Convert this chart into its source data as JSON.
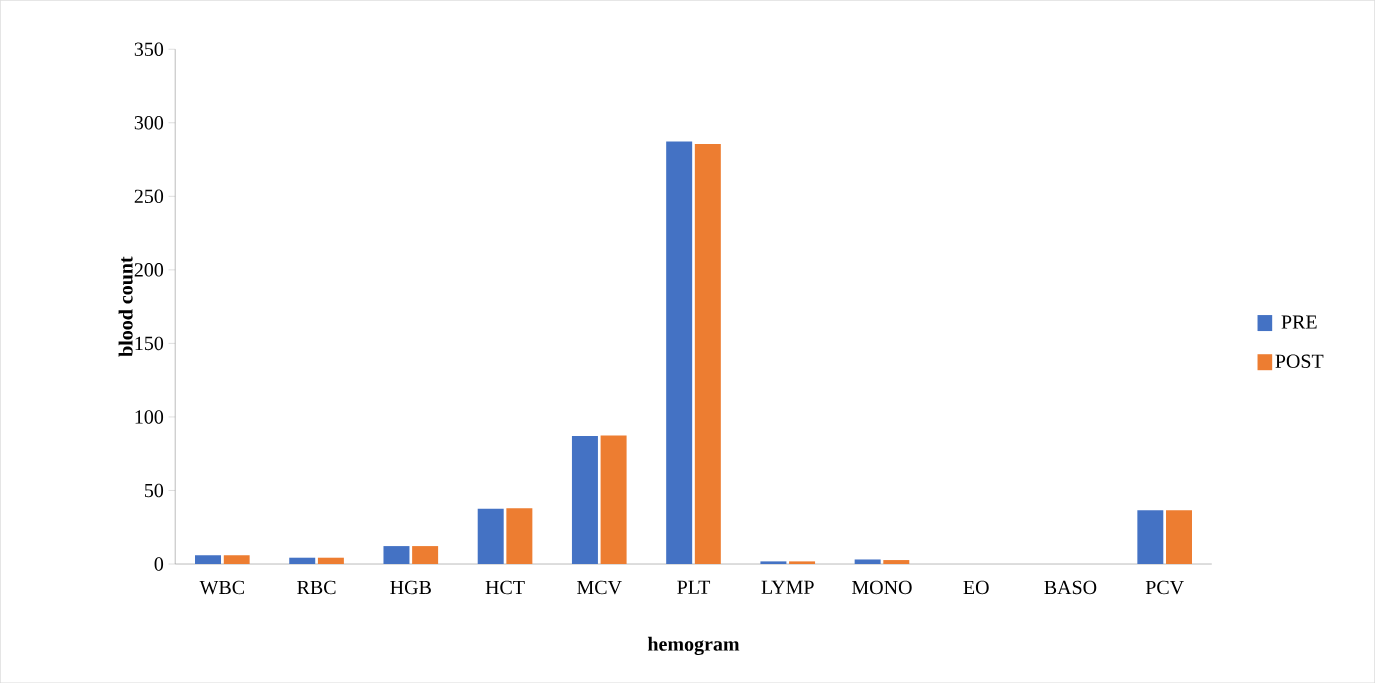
{
  "chart_data": {
    "type": "bar",
    "xlabel": "hemogram",
    "ylabel": "blood count",
    "categories": [
      "WBC",
      "RBC",
      "HGB",
      "HCT",
      "MCV",
      "PLT",
      "LYMP",
      "MONO",
      "EO",
      "BASO",
      "PCV"
    ],
    "series": [
      {
        "name": "PRE",
        "color": "#4472c4",
        "values": [
          5.9,
          4.3,
          12.2,
          37.5,
          87,
          287.3,
          1.8,
          3.1,
          null,
          null,
          36.6
        ]
      },
      {
        "name": "POST",
        "color": "#ed7d31",
        "values": [
          5.9,
          4.3,
          12.2,
          38,
          87.3,
          285.5,
          1.8,
          2.7,
          null,
          null,
          36.6
        ]
      }
    ],
    "ylim": [
      0,
      350
    ],
    "yticks": [
      0,
      50,
      100,
      150,
      200,
      250,
      300,
      350
    ],
    "grid": false,
    "legend": "right"
  }
}
